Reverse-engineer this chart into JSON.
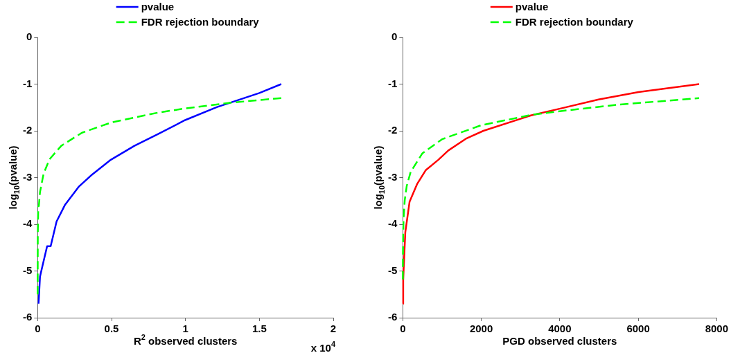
{
  "chart_data": [
    {
      "type": "line",
      "xlabel": "R$^{2}$ observed clusters",
      "ylabel": "log$_{10}$(pvalue)",
      "xlim": [
        0,
        2
      ],
      "xticks": [
        0,
        0.5,
        1,
        1.5,
        2
      ],
      "ylim": [
        -6,
        0
      ],
      "yticks": [
        -6,
        -5,
        -4,
        -3,
        -2,
        -1,
        0
      ],
      "legend": "top",
      "grid": false,
      "annotations": [
        "x 10$^{4}$"
      ],
      "series": [
        {
          "name": "pvalue",
          "color": "#0000ff",
          "line_style": "solid",
          "x": [
            0.006,
            0.008,
            0.016,
            0.032,
            0.064,
            0.088,
            0.128,
            0.184,
            0.28,
            0.367,
            0.495,
            0.655,
            0.815,
            0.998,
            1.214,
            1.31,
            1.5,
            1.648
          ],
          "values": [
            -5.7,
            -5.6,
            -5.12,
            -4.9,
            -4.47,
            -4.47,
            -3.94,
            -3.59,
            -3.19,
            -2.94,
            -2.62,
            -2.32,
            -2.07,
            -1.77,
            -1.49,
            -1.39,
            -1.19,
            -1.0
          ]
        },
        {
          "name": "FDR rejection boundary",
          "color": "#00ff00",
          "line_style": "dashed",
          "x": [
            0.0001,
            0.001,
            0.004,
            0.008,
            0.016,
            0.04,
            0.08,
            0.16,
            0.3,
            0.5,
            0.815,
            1.0,
            1.3,
            1.648
          ],
          "values": [
            -5.5,
            -4.22,
            -3.62,
            -3.61,
            -3.31,
            -2.92,
            -2.61,
            -2.32,
            -2.04,
            -1.82,
            -1.61,
            -1.52,
            -1.4,
            -1.3
          ]
        }
      ]
    },
    {
      "type": "line",
      "xlabel": "PGD observed clusters",
      "ylabel": "log$_{10}$(pvalue)",
      "xlim": [
        0,
        8000
      ],
      "xticks": [
        0,
        2000,
        4000,
        6000,
        8000
      ],
      "ylim": [
        -6,
        0
      ],
      "yticks": [
        -6,
        -5,
        -4,
        -3,
        -2,
        -1,
        0
      ],
      "legend": "top",
      "grid": false,
      "series": [
        {
          "name": "pvalue",
          "color": "#ff0000",
          "line_style": "solid",
          "x": [
            6,
            10,
            25,
            64,
            172,
            364,
            587,
            906,
            1161,
            1608,
            2054,
            3266,
            4032,
            4988,
            6008,
            7553
          ],
          "values": [
            -5.7,
            -5.2,
            -4.9,
            -4.17,
            -3.52,
            -3.14,
            -2.84,
            -2.62,
            -2.42,
            -2.17,
            -2.0,
            -1.67,
            -1.52,
            -1.33,
            -1.17,
            -1.0
          ]
        },
        {
          "name": "FDR rejection boundary",
          "color": "#00ff00",
          "line_style": "dashed",
          "x": [
            1,
            3,
            10,
            20,
            50,
            100,
            200,
            500,
            1000,
            2000,
            3266,
            4000,
            5500,
            7553
          ],
          "values": [
            -5.18,
            -4.7,
            -4.18,
            -3.88,
            -3.48,
            -3.18,
            -2.88,
            -2.48,
            -2.18,
            -1.88,
            -1.66,
            -1.58,
            -1.44,
            -1.3
          ]
        }
      ]
    }
  ]
}
